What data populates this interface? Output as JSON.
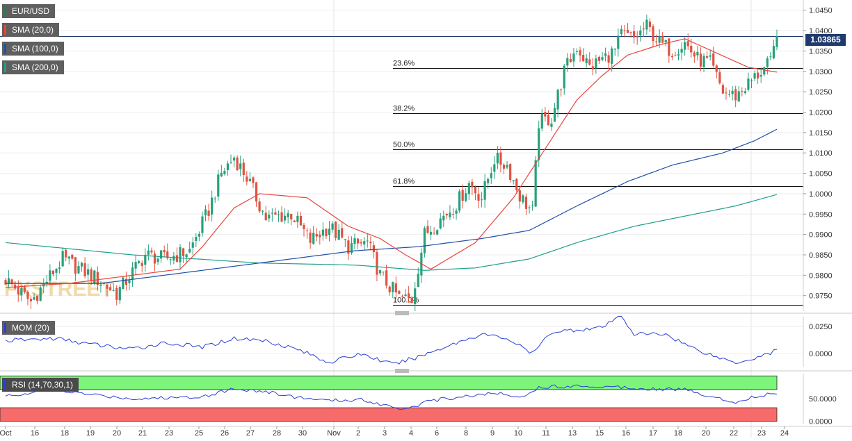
{
  "labels": {
    "symbol": "EUR/USD",
    "sma20": "SMA (20,0)",
    "sma100": "SMA (100,0)",
    "sma200": "SMA (200,0)",
    "mom": "MOM (20)",
    "rsi": "RSI (14,70,30,1)",
    "watermark": "FXSTREET"
  },
  "colors": {
    "up": "#26a17b",
    "down": "#e15241",
    "sma20": "#e8453c",
    "sma100": "#1f4fa8",
    "sma200": "#1f9e89",
    "mom": "#2a3fd6",
    "rsi_line": "#2a3fd6",
    "rsi_overbought": "#7df57a",
    "rsi_oversold": "#f76b6b",
    "price_tag": "#1f3a6e"
  },
  "current_price": "1.03865",
  "chart_data": {
    "type": "candlestick",
    "price_axis": {
      "ticks": [
        "1.0450",
        "1.0400",
        "1.0350",
        "1.0300",
        "1.0250",
        "1.0200",
        "1.0150",
        "1.0100",
        "1.0050",
        "1.0000",
        "0.9950",
        "0.9900",
        "0.9850",
        "0.9800",
        "0.9750"
      ],
      "ylim": [
        0.9712,
        1.0475
      ]
    },
    "x_labels": [
      "Oct",
      "16",
      "18",
      "19",
      "20",
      "21",
      "23",
      "25",
      "26",
      "27",
      "28",
      "30",
      "Nov",
      "2",
      "3",
      "4",
      "6",
      "8",
      "9",
      "10",
      "11",
      "13",
      "15",
      "16",
      "17",
      "18",
      "20",
      "22",
      "23",
      "24"
    ],
    "fibonacci": [
      {
        "label": "23.6%",
        "value": 1.0308
      },
      {
        "label": "38.2%",
        "value": 1.0198
      },
      {
        "label": "50.0%",
        "value": 1.0108
      },
      {
        "label": "61.8%",
        "value": 1.0018
      },
      {
        "label": "100.0%",
        "value": 0.9728
      }
    ],
    "swing_high": 1.0478,
    "anchors": [
      [
        0,
        0.979
      ],
      [
        8,
        0.9735
      ],
      [
        18,
        0.984
      ],
      [
        28,
        0.9795
      ],
      [
        35,
        0.9755
      ],
      [
        44,
        0.985
      ],
      [
        50,
        0.984
      ],
      [
        58,
        0.986
      ],
      [
        64,
        0.996
      ],
      [
        68,
        1.005
      ],
      [
        72,
        1.009
      ],
      [
        76,
        1.004
      ],
      [
        82,
        0.994
      ],
      [
        90,
        0.995
      ],
      [
        96,
        0.9885
      ],
      [
        102,
        0.992
      ],
      [
        108,
        0.987
      ],
      [
        114,
        0.988
      ],
      [
        118,
        0.98
      ],
      [
        124,
        0.9745
      ],
      [
        128,
        0.974
      ],
      [
        132,
        0.99
      ],
      [
        136,
        0.993
      ],
      [
        142,
        0.9975
      ],
      [
        146,
        1.0025
      ],
      [
        150,
        0.999
      ],
      [
        154,
        1.0085
      ],
      [
        158,
        1.007
      ],
      [
        162,
        0.9995
      ],
      [
        166,
        0.9955
      ],
      [
        168,
        1.0175
      ],
      [
        172,
        1.0185
      ],
      [
        176,
        1.03
      ],
      [
        180,
        1.036
      ],
      [
        184,
        1.031
      ],
      [
        188,
        1.033
      ],
      [
        192,
        1.035
      ],
      [
        194,
        1.039
      ],
      [
        198,
        1.038
      ],
      [
        202,
        1.041
      ],
      [
        206,
        1.037
      ],
      [
        210,
        1.035
      ],
      [
        214,
        1.037
      ],
      [
        218,
        1.033
      ],
      [
        222,
        1.032
      ],
      [
        226,
        1.025
      ],
      [
        230,
        1.024
      ],
      [
        234,
        1.027
      ],
      [
        238,
        1.03
      ],
      [
        241,
        1.032
      ],
      [
        243,
        1.0386
      ]
    ],
    "sma20_anchors": [
      [
        0,
        0.977
      ],
      [
        20,
        0.978
      ],
      [
        40,
        0.98
      ],
      [
        55,
        0.9815
      ],
      [
        62,
        0.987
      ],
      [
        72,
        0.9965
      ],
      [
        80,
        1.0
      ],
      [
        95,
        0.999
      ],
      [
        108,
        0.992
      ],
      [
        118,
        0.989
      ],
      [
        126,
        0.985
      ],
      [
        134,
        0.9815
      ],
      [
        148,
        0.988
      ],
      [
        160,
        0.999
      ],
      [
        170,
        1.011
      ],
      [
        180,
        1.023
      ],
      [
        188,
        1.029
      ],
      [
        196,
        1.034
      ],
      [
        206,
        1.0365
      ],
      [
        214,
        1.038
      ],
      [
        224,
        1.0345
      ],
      [
        234,
        1.031
      ],
      [
        243,
        1.0298
      ]
    ],
    "sma100_anchors": [
      [
        0,
        0.978
      ],
      [
        30,
        0.978
      ],
      [
        60,
        0.981
      ],
      [
        90,
        0.984
      ],
      [
        110,
        0.986
      ],
      [
        130,
        0.987
      ],
      [
        150,
        0.989
      ],
      [
        165,
        0.991
      ],
      [
        180,
        0.997
      ],
      [
        196,
        1.003
      ],
      [
        210,
        1.007
      ],
      [
        226,
        1.01
      ],
      [
        236,
        1.013
      ],
      [
        243,
        1.0158
      ]
    ],
    "sma200_anchors": [
      [
        0,
        0.988
      ],
      [
        40,
        0.985
      ],
      [
        80,
        0.983
      ],
      [
        110,
        0.9825
      ],
      [
        132,
        0.9812
      ],
      [
        148,
        0.9818
      ],
      [
        165,
        0.984
      ],
      [
        180,
        0.988
      ],
      [
        198,
        0.992
      ],
      [
        214,
        0.9945
      ],
      [
        230,
        0.997
      ],
      [
        243,
        0.9998
      ]
    ],
    "mom": {
      "ticks": [
        "0.0250",
        "0.0000"
      ],
      "ylim": [
        -0.012,
        0.034
      ],
      "anchors": [
        [
          0,
          0.012
        ],
        [
          16,
          0.014
        ],
        [
          26,
          0.009
        ],
        [
          40,
          0.004
        ],
        [
          50,
          0.01
        ],
        [
          62,
          0.006
        ],
        [
          72,
          0.014
        ],
        [
          82,
          0.012
        ],
        [
          92,
          0.004
        ],
        [
          102,
          -0.008
        ],
        [
          112,
          0.0
        ],
        [
          122,
          -0.01
        ],
        [
          130,
          -0.003
        ],
        [
          140,
          0.008
        ],
        [
          150,
          0.018
        ],
        [
          158,
          0.014
        ],
        [
          166,
          0.0
        ],
        [
          172,
          0.02
        ],
        [
          180,
          0.022
        ],
        [
          188,
          0.024
        ],
        [
          194,
          0.035
        ],
        [
          198,
          0.018
        ],
        [
          208,
          0.018
        ],
        [
          216,
          0.006
        ],
        [
          224,
          -0.003
        ],
        [
          230,
          -0.008
        ],
        [
          236,
          -0.004
        ],
        [
          243,
          0.003
        ]
      ]
    },
    "rsi": {
      "ticks": [
        "50.0000",
        "0.0000"
      ],
      "ylim": [
        -5,
        105
      ],
      "overbought": 70,
      "oversold": 30,
      "anchors": [
        [
          0,
          55
        ],
        [
          14,
          70
        ],
        [
          28,
          58
        ],
        [
          40,
          50
        ],
        [
          52,
          52
        ],
        [
          62,
          55
        ],
        [
          72,
          72
        ],
        [
          82,
          65
        ],
        [
          92,
          53
        ],
        [
          102,
          45
        ],
        [
          112,
          48
        ],
        [
          120,
          35
        ],
        [
          126,
          28
        ],
        [
          134,
          45
        ],
        [
          144,
          55
        ],
        [
          154,
          62
        ],
        [
          164,
          55
        ],
        [
          168,
          75
        ],
        [
          180,
          78
        ],
        [
          192,
          76
        ],
        [
          204,
          72
        ],
        [
          214,
          70
        ],
        [
          222,
          55
        ],
        [
          230,
          42
        ],
        [
          236,
          55
        ],
        [
          243,
          62
        ]
      ]
    }
  }
}
